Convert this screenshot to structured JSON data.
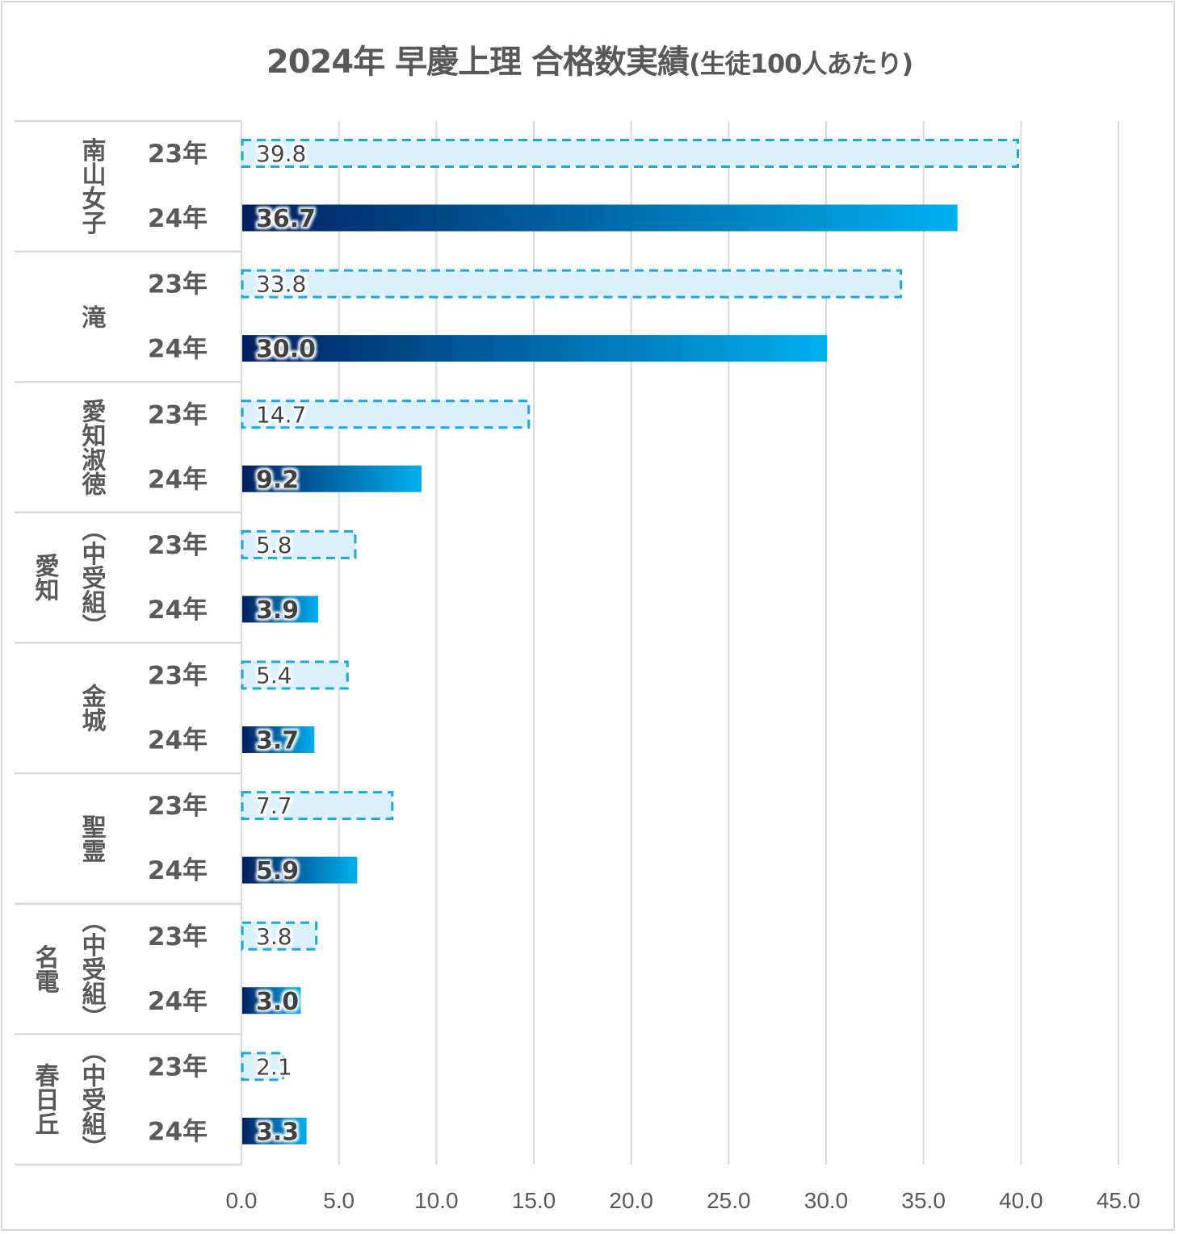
{
  "chart_data": {
    "type": "bar",
    "orientation": "horizontal",
    "title": "2024年 早慶上理 合格数実績",
    "subtitle": "(生徒100人あたり)",
    "xlabel": "",
    "ylabel": "",
    "xlim": [
      0,
      45
    ],
    "x_ticks": [
      "0.0",
      "5.0",
      "10.0",
      "15.0",
      "20.0",
      "25.0",
      "30.0",
      "35.0",
      "40.0",
      "45.0"
    ],
    "x_tick_values": [
      0,
      5,
      10,
      15,
      20,
      25,
      30,
      35,
      40,
      45
    ],
    "grid": "vertical",
    "legend": "none",
    "groups": [
      {
        "label": "南山女子",
        "label_lines": [
          "南山女子"
        ]
      },
      {
        "label": "滝",
        "label_lines": [
          "滝"
        ]
      },
      {
        "label": "愛知淑徳",
        "label_lines": [
          "愛知淑徳"
        ]
      },
      {
        "label": "愛知（中受組）",
        "label_lines": [
          "愛知",
          "（中受組）"
        ]
      },
      {
        "label": "金城",
        "label_lines": [
          "金城"
        ]
      },
      {
        "label": "聖霊",
        "label_lines": [
          "聖霊"
        ]
      },
      {
        "label": "名電（中受組）",
        "label_lines": [
          "名電",
          "（中受組）"
        ]
      },
      {
        "label": "春日丘（中受組）",
        "label_lines": [
          "春日丘",
          "（中受組）"
        ]
      }
    ],
    "series": [
      {
        "name": "23年",
        "style": "dashed-light",
        "values": [
          39.8,
          33.8,
          14.7,
          5.8,
          5.4,
          7.7,
          3.8,
          2.1
        ],
        "labels": [
          "39.8",
          "33.8",
          "14.7",
          "5.8",
          "5.4",
          "7.7",
          "3.8",
          "2.1"
        ]
      },
      {
        "name": "24年",
        "style": "gradient",
        "values": [
          36.7,
          30.0,
          9.2,
          3.9,
          3.7,
          5.9,
          3.0,
          3.3
        ],
        "labels": [
          "36.7",
          "30.0",
          "9.2",
          "3.9",
          "3.7",
          "5.9",
          "3.0",
          "3.3"
        ]
      }
    ],
    "colors": {
      "bar23_fill": "#daf1fb",
      "bar23_border": "#1aa7e0",
      "bar24_start": "#002060",
      "bar24_end": "#00b0f0",
      "grid": "#d9d9d9",
      "text": "#595959"
    }
  }
}
